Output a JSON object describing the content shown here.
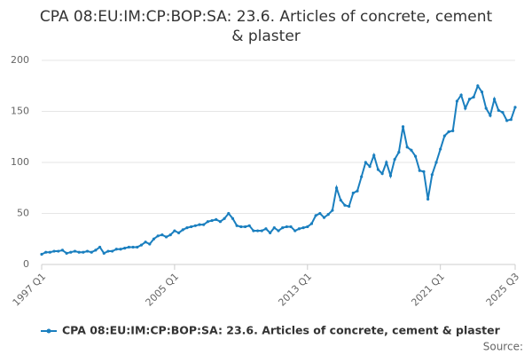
{
  "chart_data": {
    "type": "line",
    "title": "CPA 08:EU:IM:CP:BOP:SA: 23.6. Articles of concrete, cement & plaster",
    "categories": [
      "1997 Q1",
      null,
      null,
      null,
      null,
      null,
      null,
      null,
      null,
      null,
      null,
      null,
      null,
      null,
      null,
      null,
      null,
      null,
      null,
      null,
      null,
      null,
      null,
      null,
      null,
      null,
      null,
      null,
      null,
      null,
      null,
      null,
      "2005 Q1",
      null,
      null,
      null,
      null,
      null,
      null,
      null,
      null,
      null,
      null,
      null,
      null,
      null,
      null,
      null,
      null,
      null,
      null,
      null,
      null,
      null,
      null,
      null,
      null,
      null,
      null,
      null,
      null,
      null,
      null,
      null,
      "2013 Q1",
      null,
      null,
      null,
      null,
      null,
      null,
      null,
      null,
      null,
      null,
      null,
      null,
      null,
      null,
      null,
      null,
      null,
      null,
      null,
      null,
      null,
      null,
      null,
      null,
      null,
      null,
      null,
      null,
      null,
      null,
      null,
      "2021 Q1",
      null,
      null,
      null,
      null,
      null,
      null,
      null,
      null,
      null,
      null,
      null,
      null,
      null,
      null,
      null,
      null,
      null,
      "2025 Q3"
    ],
    "series": [
      {
        "name": "CPA 08:EU:IM:CP:BOP:SA: 23.6. Articles of concrete, cement & plaster",
        "color": "#1a7fbf",
        "values": [
          10,
          12,
          12,
          13,
          13,
          14,
          11,
          12,
          13,
          12,
          12,
          13,
          12,
          14,
          17,
          11,
          13,
          13,
          15,
          15,
          16,
          17,
          17,
          17,
          19,
          22,
          20,
          25,
          28,
          29,
          27,
          29,
          33,
          31,
          34,
          36,
          37,
          38,
          39,
          39,
          42,
          43,
          44,
          42,
          45,
          50,
          45,
          38,
          37,
          37,
          38,
          33,
          33,
          33,
          35,
          31,
          36,
          33,
          36,
          37,
          37,
          33,
          35,
          36,
          37,
          40,
          48,
          50,
          46,
          49,
          53,
          75,
          63,
          58,
          57,
          70,
          72,
          86,
          100,
          96,
          107,
          93,
          89,
          100,
          87,
          103,
          110,
          135,
          115,
          112,
          106,
          92,
          91,
          64,
          88,
          100,
          113,
          126,
          130,
          131,
          160,
          166,
          153,
          162,
          164,
          175,
          169,
          153,
          146,
          162,
          151,
          149,
          141,
          142,
          154
        ]
      }
    ],
    "ylim": [
      0,
      200
    ],
    "yticks": [
      0,
      50,
      100,
      150,
      200
    ],
    "grid": true,
    "source": "Source:"
  }
}
